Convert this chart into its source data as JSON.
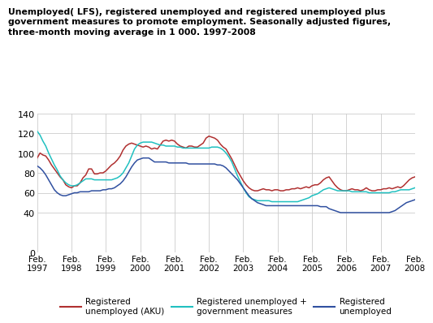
{
  "title": "Unemployed( LFS), registered unemployed and registered unemployed plus\ngovernment measures to promote employment. Seasonally adjusted figures,\nthree-month moving average in 1 000. 1997-2008",
  "ylim": [
    0,
    140
  ],
  "yticks": [
    0,
    40,
    60,
    80,
    100,
    120,
    140
  ],
  "bg_color": "#ffffff",
  "grid_color": "#cccccc",
  "line1_color": "#b03030",
  "line2_color": "#20c0c0",
  "line3_color": "#3050a0",
  "legend_labels": [
    "Registered\nunemployed (AKU)",
    "Registered unemployed +\ngovernment measures",
    "Registered\nunemployed"
  ],
  "xtick_years": [
    1997,
    1998,
    1999,
    2000,
    2001,
    2002,
    2003,
    2004,
    2005,
    2006,
    2007,
    2008
  ],
  "registered_aku": [
    95,
    100,
    98,
    97,
    93,
    88,
    84,
    80,
    76,
    73,
    68,
    66,
    65,
    67,
    67,
    70,
    75,
    78,
    84,
    84,
    79,
    79,
    80,
    80,
    82,
    85,
    88,
    90,
    93,
    97,
    103,
    107,
    109,
    110,
    109,
    108,
    107,
    106,
    107,
    106,
    104,
    105,
    104,
    108,
    112,
    113,
    112,
    113,
    112,
    109,
    107,
    106,
    105,
    107,
    107,
    106,
    106,
    108,
    110,
    115,
    117,
    116,
    115,
    113,
    109,
    106,
    104,
    99,
    94,
    88,
    82,
    77,
    72,
    68,
    65,
    63,
    62,
    62,
    63,
    64,
    63,
    63,
    62,
    63,
    63,
    62,
    62,
    63,
    63,
    64,
    64,
    65,
    64,
    65,
    66,
    65,
    67,
    68,
    68,
    70,
    73,
    75,
    76,
    72,
    68,
    65,
    63,
    62,
    62,
    63,
    64,
    63,
    63,
    62,
    63,
    65,
    63,
    62,
    62,
    63,
    63,
    64,
    64,
    65,
    64,
    65,
    66,
    65,
    67,
    70,
    73,
    75,
    76
  ],
  "reg_plus_gov": [
    122,
    118,
    112,
    107,
    100,
    94,
    88,
    83,
    77,
    73,
    70,
    68,
    67,
    67,
    68,
    70,
    72,
    74,
    74,
    74,
    73,
    73,
    73,
    73,
    73,
    73,
    73,
    74,
    75,
    77,
    80,
    85,
    90,
    97,
    104,
    108,
    110,
    111,
    111,
    111,
    111,
    110,
    109,
    108,
    108,
    107,
    107,
    107,
    107,
    106,
    106,
    105,
    105,
    105,
    105,
    105,
    105,
    105,
    105,
    105,
    105,
    106,
    106,
    106,
    105,
    103,
    100,
    96,
    91,
    84,
    77,
    71,
    65,
    60,
    56,
    54,
    53,
    52,
    52,
    52,
    52,
    52,
    51,
    51,
    51,
    51,
    51,
    51,
    51,
    51,
    51,
    51,
    52,
    53,
    54,
    55,
    57,
    58,
    59,
    61,
    63,
    64,
    65,
    64,
    63,
    62,
    62,
    62,
    62,
    62,
    61,
    61,
    61,
    61,
    61,
    61,
    60,
    60,
    60,
    60,
    60,
    60,
    60,
    60,
    61,
    61,
    62,
    63,
    63,
    63,
    63,
    64,
    65
  ],
  "registered": [
    87,
    85,
    82,
    78,
    73,
    68,
    63,
    60,
    58,
    57,
    57,
    58,
    59,
    60,
    60,
    61,
    61,
    61,
    61,
    62,
    62,
    62,
    62,
    63,
    63,
    64,
    64,
    65,
    67,
    69,
    72,
    76,
    81,
    86,
    90,
    93,
    94,
    95,
    95,
    95,
    93,
    91,
    91,
    91,
    91,
    91,
    90,
    90,
    90,
    90,
    90,
    90,
    90,
    89,
    89,
    89,
    89,
    89,
    89,
    89,
    89,
    89,
    89,
    88,
    88,
    87,
    85,
    82,
    79,
    76,
    73,
    69,
    65,
    61,
    57,
    54,
    52,
    50,
    49,
    48,
    47,
    47,
    47,
    47,
    47,
    47,
    47,
    47,
    47,
    47,
    47,
    47,
    47,
    47,
    47,
    47,
    47,
    47,
    47,
    46,
    46,
    46,
    44,
    43,
    42,
    41,
    40,
    40,
    40,
    40,
    40,
    40,
    40,
    40,
    40,
    40,
    40,
    40,
    40,
    40,
    40,
    40,
    40,
    40,
    41,
    42,
    44,
    46,
    48,
    50,
    51,
    52,
    53
  ],
  "n_points": 133
}
